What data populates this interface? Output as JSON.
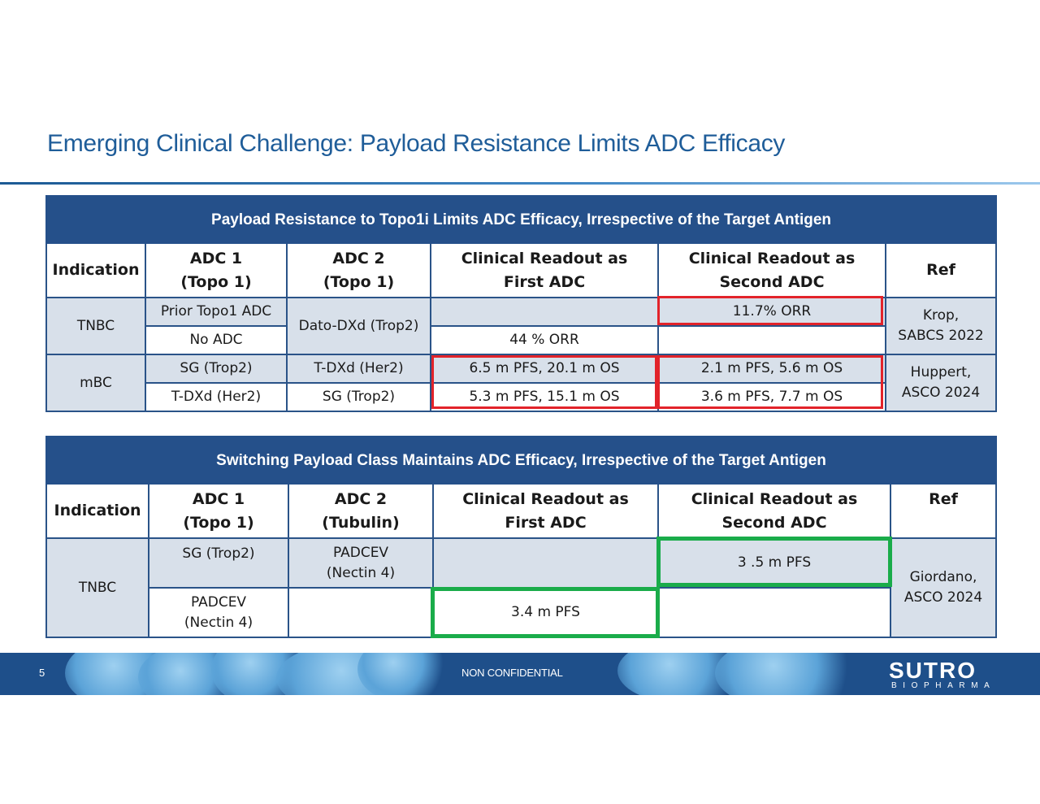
{
  "slide": {
    "title": "Emerging Clinical Challenge:  Payload Resistance Limits ADC Efficacy"
  },
  "table1": {
    "banner": "Payload Resistance to Topo1i Limits ADC Efficacy, Irrespective of the Target Antigen",
    "headers": {
      "indication": "Indication",
      "adc1_a": "ADC 1",
      "adc1_b": "(Topo 1)",
      "adc2_a": "ADC 2",
      "adc2_b": "(Topo 1)",
      "first_a": "Clinical Readout as",
      "first_b": "First ADC",
      "second_a": "Clinical Readout as",
      "second_b": "Second ADC",
      "ref": "Ref"
    },
    "rows": {
      "tnbc": {
        "indication": "TNBC",
        "adc1_r1": "Prior Topo1 ADC",
        "adc1_r2": "No ADC",
        "adc2": "Dato-DXd (Trop2)",
        "first_r1": "",
        "first_r2": "44 % ORR",
        "second_r1": "11.7% ORR",
        "second_r2": "",
        "ref_a": "Krop,",
        "ref_b": "SABCS 2022"
      },
      "mbc": {
        "indication": "mBC",
        "adc1_r1": "SG (Trop2)",
        "adc1_r2": "T-DXd (Her2)",
        "adc2_r1": "T-DXd (Her2)",
        "adc2_r2": "SG (Trop2)",
        "first_r1": "6.5 m PFS, 20.1 m OS",
        "first_r2": "5.3 m PFS, 15.1 m OS",
        "second_r1": "2.1 m PFS, 5.6 m OS",
        "second_r2": "3.6 m PFS, 7.7 m OS",
        "ref_a": "Huppert,",
        "ref_b": "ASCO 2024"
      }
    }
  },
  "table2": {
    "banner": "Switching Payload Class Maintains ADC Efficacy, Irrespective of the Target Antigen",
    "headers": {
      "indication": "Indication",
      "adc1_a": "ADC 1",
      "adc1_b": "(Topo 1)",
      "adc2_a": "ADC 2",
      "adc2_b": "(Tubulin)",
      "first_a": "Clinical Readout as",
      "first_b": "First ADC",
      "second_a": "Clinical Readout as",
      "second_b": "Second ADC",
      "ref": "Ref"
    },
    "rows": {
      "tnbc": {
        "indication": "TNBC",
        "adc1_r1": "SG  (Trop2)",
        "adc1_r2_a": "PADCEV",
        "adc1_r2_b": "(Nectin 4)",
        "adc2_r1_a": "PADCEV",
        "adc2_r1_b": "(Nectin 4)",
        "adc2_r2": "",
        "first_r1": "",
        "first_r2": "3.4 m PFS",
        "second_r1": "3 .5 m PFS",
        "second_r2": "",
        "ref_a": "Giordano,",
        "ref_b": "ASCO 2024"
      }
    }
  },
  "footer": {
    "page_number": "5",
    "classification": "NON CONFIDENTIAL",
    "logo_main": "SUTRO",
    "logo_sub": "BIOPHARMA"
  },
  "colors": {
    "title": "#1f5d99",
    "banner": "#25508a",
    "cell_shade": "#d8e0ea",
    "highlight_red": "#e2232a",
    "highlight_green": "#1aac4a",
    "footer": "#1e4f8a"
  }
}
